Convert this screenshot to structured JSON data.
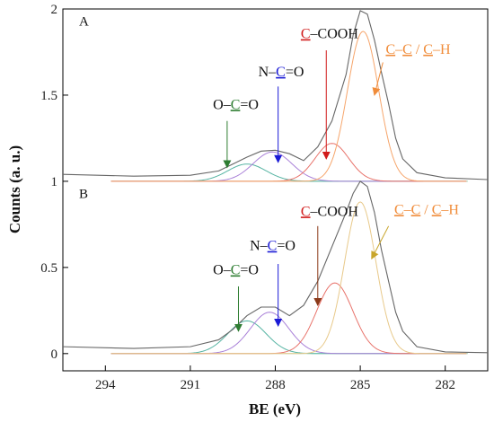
{
  "chart_data": {
    "type": "line",
    "xlabel": "BE (eV)",
    "ylabel": "Counts (a. u.)",
    "x_reversed": true,
    "xlim": [
      280.5,
      295.5
    ],
    "ylim": [
      -0.1,
      2.0
    ],
    "x_ticks": [
      294,
      291,
      288,
      285,
      282
    ],
    "y_ticks": [
      0,
      0.5,
      1,
      1.5,
      2
    ],
    "y_tick_labels": [
      "0",
      "0.5",
      "1",
      "1.5",
      "2"
    ],
    "grid": false,
    "panels": [
      {
        "label": "A",
        "baseline": 1.0,
        "envelope": {
          "name": "",
          "color": "#666666",
          "points": [
            [
              295.5,
              1.04
            ],
            [
              293.0,
              1.03
            ],
            [
              291.0,
              1.035
            ],
            [
              290.0,
              1.06
            ],
            [
              289.5,
              1.1
            ],
            [
              289.0,
              1.14
            ],
            [
              288.5,
              1.175
            ],
            [
              288.0,
              1.18
            ],
            [
              287.5,
              1.16
            ],
            [
              287.0,
              1.12
            ],
            [
              286.5,
              1.2
            ],
            [
              286.0,
              1.35
            ],
            [
              285.5,
              1.62
            ],
            [
              285.25,
              1.85
            ],
            [
              285.0,
              1.99
            ],
            [
              284.75,
              1.97
            ],
            [
              284.5,
              1.82
            ],
            [
              284.25,
              1.63
            ],
            [
              284.0,
              1.45
            ],
            [
              283.75,
              1.25
            ],
            [
              283.5,
              1.13
            ],
            [
              283.0,
              1.05
            ],
            [
              282.0,
              1.02
            ],
            [
              280.5,
              1.01
            ]
          ]
        },
        "components": [
          {
            "name": "O–C=O",
            "color": "#56b4a3",
            "center": 289.0,
            "height": 0.1,
            "fwhm": 1.6
          },
          {
            "name": "N–C=O",
            "color": "#a980d8",
            "center": 288.1,
            "height": 0.17,
            "fwhm": 1.6
          },
          {
            "name": "C–COOH",
            "color": "#e8736b",
            "center": 286.0,
            "height": 0.22,
            "fwhm": 1.4
          },
          {
            "name": "C–C / C–H",
            "color": "#f6a56b",
            "center": 284.9,
            "height": 0.87,
            "fwhm": 1.3
          }
        ],
        "annotations": [
          {
            "text_segments": [
              {
                "t": "O",
                "c": "#111111",
                "u": false
              },
              {
                "t": "–",
                "c": "#111111",
                "u": false
              },
              {
                "t": "C",
                "c": "#2e7d32",
                "u": true
              },
              {
                "t": "=O",
                "c": "#111111",
                "u": false
              }
            ],
            "arrow_color": "#2e7d32",
            "label_x": 290.2,
            "label_y": 1.42,
            "arrow_from": [
              289.7,
              1.35
            ],
            "arrow_to": [
              289.7,
              1.08
            ]
          },
          {
            "text_segments": [
              {
                "t": "N",
                "c": "#111111",
                "u": false
              },
              {
                "t": "–",
                "c": "#111111",
                "u": false
              },
              {
                "t": "C",
                "c": "#1a1ad6",
                "u": true
              },
              {
                "t": "=O",
                "c": "#111111",
                "u": false
              }
            ],
            "arrow_color": "#1a1ad6",
            "label_x": 288.6,
            "label_y": 1.61,
            "arrow_from": [
              287.9,
              1.55
            ],
            "arrow_to": [
              287.9,
              1.11
            ]
          },
          {
            "text_segments": [
              {
                "t": "C",
                "c": "#d11a1a",
                "u": true
              },
              {
                "t": "–COOH",
                "c": "#111111",
                "u": false
              }
            ],
            "arrow_color": "#d11a1a",
            "label_x": 287.1,
            "label_y": 1.83,
            "arrow_from": [
              286.2,
              1.76
            ],
            "arrow_to": [
              286.2,
              1.13
            ]
          },
          {
            "text_segments": [
              {
                "t": "C",
                "c": "#f08c3a",
                "u": true
              },
              {
                "t": "–",
                "c": "#f08c3a",
                "u": false
              },
              {
                "t": "C",
                "c": "#f08c3a",
                "u": true
              },
              {
                "t": " / ",
                "c": "#f08c3a",
                "u": false
              },
              {
                "t": "C",
                "c": "#f08c3a",
                "u": true
              },
              {
                "t": "–H",
                "c": "#f08c3a",
                "u": false
              }
            ],
            "arrow_color": "#f08c3a",
            "label_x": 284.1,
            "label_y": 1.74,
            "arrow_from": [
              284.2,
              1.69
            ],
            "arrow_to": [
              284.5,
              1.5
            ]
          }
        ]
      },
      {
        "label": "B",
        "baseline": 0.0,
        "envelope": {
          "name": "",
          "color": "#666666",
          "points": [
            [
              295.5,
              0.04
            ],
            [
              293.0,
              0.03
            ],
            [
              291.0,
              0.04
            ],
            [
              290.0,
              0.08
            ],
            [
              289.5,
              0.14
            ],
            [
              289.0,
              0.22
            ],
            [
              288.5,
              0.27
            ],
            [
              288.0,
              0.27
            ],
            [
              287.5,
              0.22
            ],
            [
              287.0,
              0.28
            ],
            [
              286.5,
              0.42
            ],
            [
              286.0,
              0.62
            ],
            [
              285.5,
              0.82
            ],
            [
              285.25,
              0.93
            ],
            [
              285.0,
              1.0
            ],
            [
              284.75,
              0.97
            ],
            [
              284.5,
              0.82
            ],
            [
              284.25,
              0.6
            ],
            [
              284.0,
              0.42
            ],
            [
              283.75,
              0.24
            ],
            [
              283.5,
              0.13
            ],
            [
              283.0,
              0.04
            ],
            [
              282.0,
              0.01
            ],
            [
              280.5,
              0.005
            ]
          ]
        },
        "components": [
          {
            "name": "O–C=O",
            "color": "#56b4a3",
            "center": 289.0,
            "height": 0.19,
            "fwhm": 1.6
          },
          {
            "name": "N–C=O",
            "color": "#a980d8",
            "center": 288.2,
            "height": 0.24,
            "fwhm": 1.6
          },
          {
            "name": "C–COOH",
            "color": "#e8736b",
            "center": 285.9,
            "height": 0.41,
            "fwhm": 1.5
          },
          {
            "name": "C–C / C–H",
            "color": "#e8c98a",
            "center": 285.0,
            "height": 0.88,
            "fwhm": 1.3
          }
        ],
        "annotations": [
          {
            "text_segments": [
              {
                "t": "O",
                "c": "#111111",
                "u": false
              },
              {
                "t": "–",
                "c": "#111111",
                "u": false
              },
              {
                "t": "C",
                "c": "#2e7d32",
                "u": true
              },
              {
                "t": "=O",
                "c": "#111111",
                "u": false
              }
            ],
            "arrow_color": "#2e7d32",
            "label_x": 290.2,
            "label_y": 0.46,
            "arrow_from": [
              289.3,
              0.39
            ],
            "arrow_to": [
              289.3,
              0.13
            ]
          },
          {
            "text_segments": [
              {
                "t": "N",
                "c": "#111111",
                "u": false
              },
              {
                "t": "–",
                "c": "#111111",
                "u": false
              },
              {
                "t": "C",
                "c": "#1a1ad6",
                "u": true
              },
              {
                "t": "=O",
                "c": "#111111",
                "u": false
              }
            ],
            "arrow_color": "#1a1ad6",
            "label_x": 288.9,
            "label_y": 0.6,
            "arrow_from": [
              287.9,
              0.52
            ],
            "arrow_to": [
              287.9,
              0.16
            ]
          },
          {
            "text_segments": [
              {
                "t": "C",
                "c": "#d11a1a",
                "u": true
              },
              {
                "t": "–COOH",
                "c": "#111111",
                "u": false
              }
            ],
            "arrow_color": "#8b3a1a",
            "label_x": 287.1,
            "label_y": 0.8,
            "arrow_from": [
              286.5,
              0.74
            ],
            "arrow_to": [
              286.5,
              0.28
            ]
          },
          {
            "text_segments": [
              {
                "t": "C",
                "c": "#f08c3a",
                "u": true
              },
              {
                "t": "–",
                "c": "#f08c3a",
                "u": false
              },
              {
                "t": "C",
                "c": "#f08c3a",
                "u": true
              },
              {
                "t": " / ",
                "c": "#f08c3a",
                "u": false
              },
              {
                "t": "C",
                "c": "#f08c3a",
                "u": true
              },
              {
                "t": "–H",
                "c": "#f08c3a",
                "u": false
              }
            ],
            "arrow_color": "#c8a52a",
            "label_x": 283.8,
            "label_y": 0.81,
            "arrow_from": [
              284.0,
              0.74
            ],
            "arrow_to": [
              284.6,
              0.55
            ]
          }
        ]
      }
    ]
  }
}
